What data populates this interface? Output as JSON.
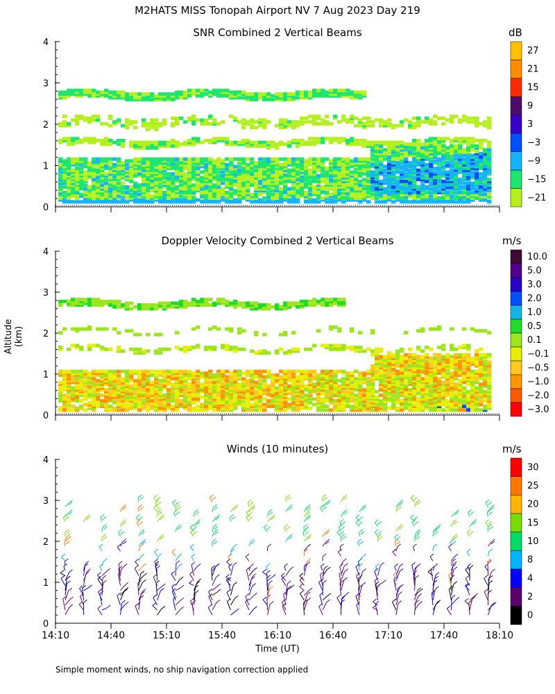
{
  "title": "M2HATS MISS Tonopah Airport NV   7 Aug 2023 Day 219",
  "footnote": "Simple moment winds, no ship navigation correction applied",
  "chart_data": [
    {
      "type": "heatmap",
      "title": "SNR Combined 2 Vertical Beams",
      "ylabel": "Altitude (km)",
      "ylim": [
        0,
        4
      ],
      "y_ticks": [
        "0",
        "1",
        "2",
        "3",
        "4"
      ],
      "x_range": [
        "14:10",
        "18:10"
      ],
      "colorbar": {
        "unit": "dB",
        "labels": [
          "27",
          "21",
          "15",
          "9",
          "3",
          "−3",
          "−9",
          "−15",
          "−21"
        ],
        "colors": [
          "#ffc000",
          "#ff8c00",
          "#ff2a00",
          "#4b0f6b",
          "#3a00c8",
          "#0050ff",
          "#14b4ff",
          "#1ee66e",
          "#b4f01e"
        ]
      },
      "layers": [
        {
          "name": "cloud layer",
          "altitude_km": 2.7,
          "start": "14:10",
          "end": "18:10",
          "dominant": "−15"
        },
        {
          "name": "layer",
          "altitude_km": 2.0,
          "start": "14:10",
          "end": "18:10",
          "dominant": "−21"
        },
        {
          "name": "layer",
          "altitude_km": 1.55,
          "start": "14:10",
          "end": "18:10",
          "dominant": "−15"
        },
        {
          "name": "boundary layer",
          "altitude_km": 0.5,
          "start": "14:10",
          "end": "18:10",
          "dominant": "−9"
        }
      ]
    },
    {
      "type": "heatmap",
      "title": "Doppler Velocity Combined 2 Vertical Beams",
      "ylim": [
        0,
        4
      ],
      "y_ticks": [
        "0",
        "1",
        "2",
        "3",
        "4"
      ],
      "x_range": [
        "14:10",
        "18:10"
      ],
      "colorbar": {
        "unit": "m/s",
        "labels": [
          "10.0",
          "5.0",
          "3.0",
          "2.0",
          "1.0",
          "0.5",
          "0.1",
          "−0.1",
          "−0.5",
          "−1.0",
          "−2.0",
          "−3.0"
        ],
        "colors": [
          "#3c0a32",
          "#50008c",
          "#2800c8",
          "#0050ff",
          "#14b4e6",
          "#1edc28",
          "#9be61e",
          "#e6f000",
          "#ffc81e",
          "#ff9600",
          "#ff5a00",
          "#ff0000"
        ]
      }
    },
    {
      "type": "barbs",
      "title": "Winds (10 minutes)",
      "xlabel": "Time (UT)",
      "ylim": [
        0,
        4
      ],
      "y_ticks": [
        "0",
        "1",
        "2",
        "3",
        "4"
      ],
      "x_ticks": [
        "14:10",
        "14:40",
        "15:10",
        "15:40",
        "16:10",
        "16:40",
        "17:10",
        "17:40",
        "18:10"
      ],
      "colorbar": {
        "unit": "m/s",
        "labels": [
          "30",
          "25",
          "20",
          "15",
          "10",
          "8",
          "4",
          "2",
          "0"
        ],
        "colors": [
          "#ff0000",
          "#ff7800",
          "#ffb400",
          "#78dc00",
          "#00dc64",
          "#00b4ff",
          "#0000ff",
          "#5a006e",
          "#000000"
        ]
      }
    }
  ]
}
